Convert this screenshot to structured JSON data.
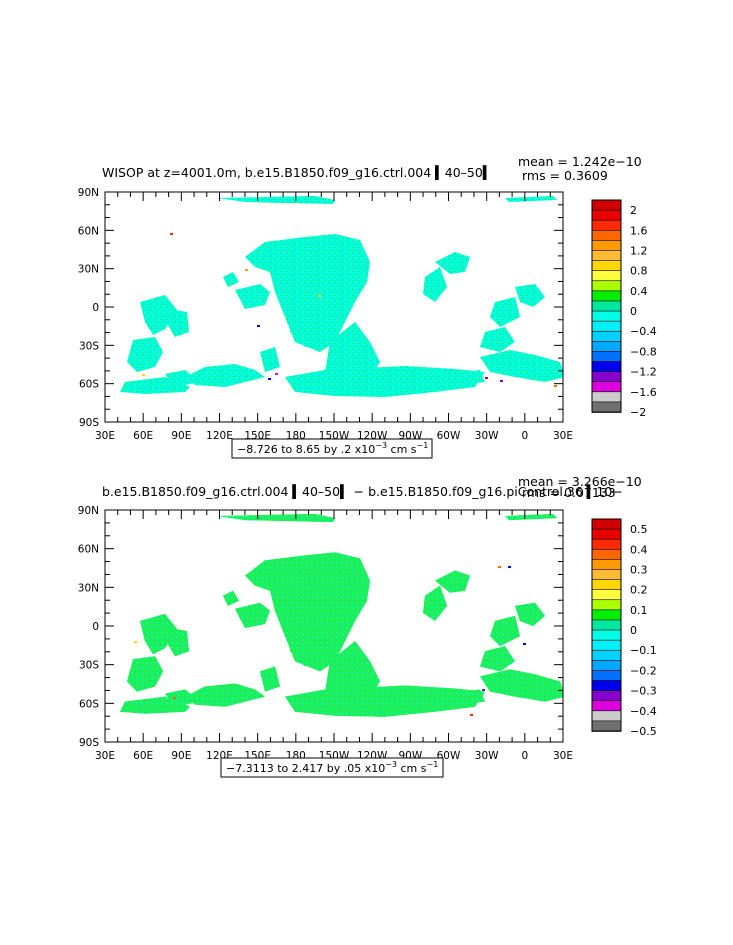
{
  "lat_labels": [
    "90N",
    "60N",
    "30N",
    "0",
    "30S",
    "60S",
    "90S"
  ],
  "lon_labels": [
    "30E",
    "60E",
    "90E",
    "120E",
    "150E",
    "180",
    "150W",
    "120W",
    "90W",
    "60W",
    "30W",
    "0",
    "30E"
  ],
  "colors": {
    "land": "#ffffff",
    "main_field": "#00ffe6",
    "near_zero_pos": "#20ee50",
    "contour_line": "#000000"
  },
  "panels": [
    {
      "title": "WISOP at z=4001.0m, b.e15.B1850.f09_g16.ctrl.004 ▍40–50▍",
      "mean": "mean = 1.242e−10",
      "rms": "rms = 0.3609",
      "range_label": "−8.726 to 8.65 by .2 x10",
      "range_exp": "−3",
      "range_unit": " cm s",
      "range_unit_exp": "−1",
      "colorbar": {
        "labels": [
          "2",
          "1.6",
          "1.2",
          "0.8",
          "0.4",
          "0",
          "−0.4",
          "−0.8",
          "−1.2",
          "−1.6",
          "−2"
        ],
        "colors": [
          "#d00000",
          "#e80000",
          "#ff2a00",
          "#ff6600",
          "#ff9a00",
          "#ffbb33",
          "#ffd700",
          "#ffff40",
          "#aaff00",
          "#00ee00",
          "#00e8a0",
          "#00ffe6",
          "#00f0f8",
          "#00d2ff",
          "#00a8ff",
          "#0070ff",
          "#0000ee",
          "#8800cc",
          "#dd00dd",
          "#cccccc",
          "#707070"
        ]
      }
    },
    {
      "title": "b.e15.B1850.f09_g16.ctrl.004 ▍40–50▍ − b.e15.B1850.f09_g16.piControl.36 ▍10−",
      "mean": "mean = 3.266e−10",
      "rms": "rms = 0.07133",
      "range_label": "−7.3113 to 2.417 by .05 x10",
      "range_exp": "−3",
      "range_unit": " cm s",
      "range_unit_exp": "−1",
      "colorbar": {
        "labels": [
          "0.5",
          "0.4",
          "0.3",
          "0.2",
          "0.1",
          "0",
          "−0.1",
          "−0.2",
          "−0.3",
          "−0.4",
          "−0.5"
        ],
        "colors": [
          "#d00000",
          "#e80000",
          "#ff2a00",
          "#ff6600",
          "#ff9a00",
          "#ffbb33",
          "#ffd700",
          "#ffff40",
          "#aaff00",
          "#00ee00",
          "#00e8a0",
          "#00ffe6",
          "#00f0f8",
          "#00d2ff",
          "#00a8ff",
          "#0070ff",
          "#0000ee",
          "#8800cc",
          "#dd00dd",
          "#cccccc",
          "#707070"
        ]
      }
    }
  ],
  "chart_data": [
    {
      "type": "heatmap",
      "title": "WISOP at z=4001.0m, b.e15.B1850.f09_g16.ctrl.004 ▍40–50▍",
      "y_ticks": [
        "90N",
        "60N",
        "30N",
        "0",
        "30S",
        "60S",
        "90S"
      ],
      "x_ticks": [
        "30E",
        "60E",
        "90E",
        "120E",
        "150E",
        "180",
        "150W",
        "120W",
        "90W",
        "60W",
        "30W",
        "0",
        "30E"
      ],
      "mean": 1.242e-10,
      "rms": 0.3609,
      "data_min": -8.726,
      "data_max": 8.65,
      "contour_interval": 0.2,
      "scale": "x10^-3 cm s^-1",
      "levels": [
        -2,
        -1.6,
        -1.2,
        -0.8,
        -0.4,
        0,
        0.4,
        0.8,
        1.2,
        1.6,
        2
      ],
      "dominant_range": [
        -0.4,
        0.4
      ]
    },
    {
      "type": "heatmap",
      "title": "b.e15.B1850.f09_g16.ctrl.004 ▍40–50▍ − b.e15.B1850.f09_g16.piControl.36 ▍10−",
      "y_ticks": [
        "90N",
        "60N",
        "30N",
        "0",
        "30S",
        "60S",
        "90S"
      ],
      "x_ticks": [
        "30E",
        "60E",
        "90E",
        "120E",
        "150E",
        "180",
        "150W",
        "120W",
        "90W",
        "60W",
        "30W",
        "0",
        "30E"
      ],
      "mean": 3.266e-10,
      "rms": 0.07133,
      "data_min": -7.3113,
      "data_max": 2.417,
      "contour_interval": 0.05,
      "scale": "x10^-3 cm s^-1",
      "levels": [
        -0.5,
        -0.4,
        -0.3,
        -0.2,
        -0.1,
        0,
        0.1,
        0.2,
        0.3,
        0.4,
        0.5
      ],
      "dominant_range": [
        -0.1,
        0.1
      ]
    }
  ]
}
